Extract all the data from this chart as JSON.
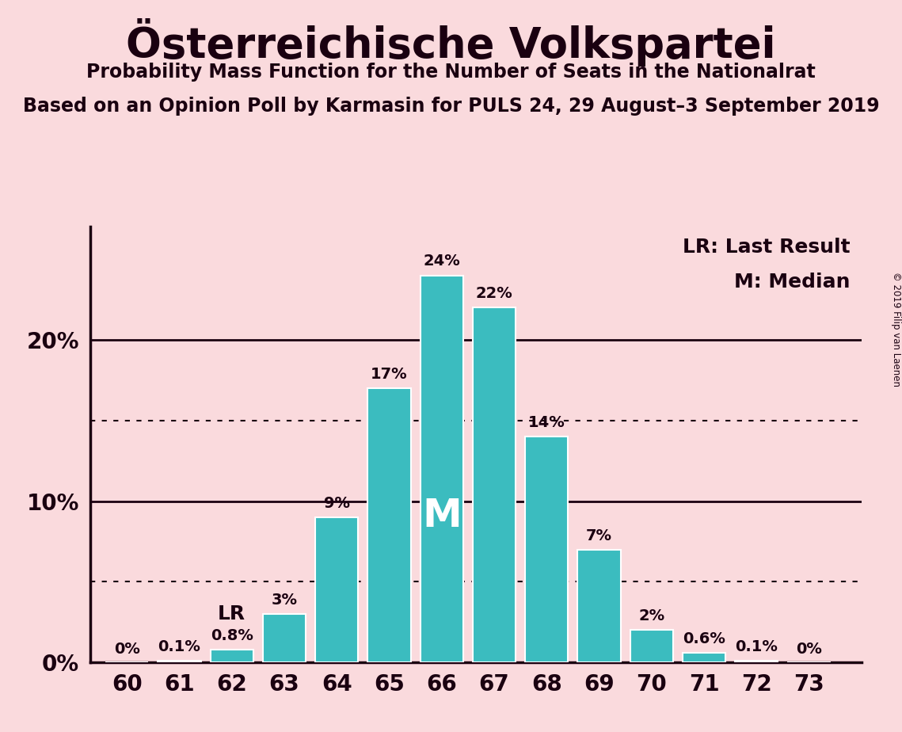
{
  "title": "Österreichische Volkspartei",
  "subtitle1": "Probability Mass Function for the Number of Seats in the Nationalrat",
  "subtitle2": "Based on an Opinion Poll by Karmasin for PULS 24, 29 August–3 September 2019",
  "copyright": "© 2019 Filip van Laenen",
  "seats": [
    60,
    61,
    62,
    63,
    64,
    65,
    66,
    67,
    68,
    69,
    70,
    71,
    72,
    73
  ],
  "probabilities": [
    0.0,
    0.1,
    0.8,
    3.0,
    9.0,
    17.0,
    24.0,
    22.0,
    14.0,
    7.0,
    2.0,
    0.6,
    0.1,
    0.0
  ],
  "bar_color": "#3bbcbf",
  "bar_edge_color": "#ffffff",
  "background_color": "#fadadd",
  "text_color": "#1a0010",
  "last_result_seat": 62,
  "median_seat": 66,
  "yticks": [
    0,
    10,
    20
  ],
  "dotted_lines": [
    5,
    15
  ],
  "bar_labels": [
    "0%",
    "0.1%",
    "0.8%",
    "3%",
    "9%",
    "17%",
    "24%",
    "22%",
    "14%",
    "7%",
    "2%",
    "0.6%",
    "0.1%",
    "0%"
  ],
  "ylim_max": 27,
  "bar_width": 0.82,
  "legend_lr": "LR: Last Result",
  "legend_m": "M: Median"
}
